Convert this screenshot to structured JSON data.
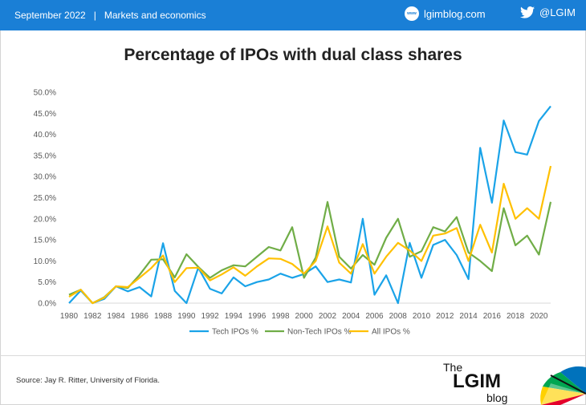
{
  "header": {
    "date": "September 2022",
    "separator": "|",
    "section": "Markets and economics",
    "site_icon_label": "www",
    "site": "lgimblog.com",
    "twitter": "@LGIM"
  },
  "footer": {
    "source": "Source: Jay R. Ritter, University of Florida.",
    "logo_the": "The",
    "logo_main": "LGIM",
    "logo_blog": "blog"
  },
  "chart_data": {
    "type": "line",
    "title": "Percentage of IPOs  with dual class shares",
    "xlabel": "",
    "ylabel": "",
    "ylim": [
      0,
      50
    ],
    "yticks": [
      "0.0%",
      "5.0%",
      "10.0%",
      "15.0%",
      "20.0%",
      "25.0%",
      "30.0%",
      "35.0%",
      "40.0%",
      "45.0%",
      "50.0%"
    ],
    "xticks": [
      "1980",
      "1982",
      "1984",
      "1986",
      "1988",
      "1990",
      "1992",
      "1994",
      "1996",
      "1998",
      "2000",
      "2002",
      "2004",
      "2006",
      "2008",
      "2010",
      "2012",
      "2014",
      "2016",
      "2018",
      "2020"
    ],
    "x": [
      1980,
      1981,
      1982,
      1983,
      1984,
      1985,
      1986,
      1987,
      1988,
      1989,
      1990,
      1991,
      1992,
      1993,
      1994,
      1995,
      1996,
      1997,
      1998,
      1999,
      2000,
      2001,
      2002,
      2003,
      2004,
      2005,
      2006,
      2007,
      2008,
      2009,
      2010,
      2011,
      2012,
      2013,
      2014,
      2015,
      2016,
      2017,
      2018,
      2019,
      2020,
      2021
    ],
    "grid": false,
    "legend": "bottom",
    "series": [
      {
        "name": "Tech IPOs %",
        "color": "#1aa3e8",
        "values": [
          0.0,
          3.0,
          0.0,
          1.0,
          4.0,
          2.8,
          3.8,
          1.6,
          14.2,
          2.9,
          0.0,
          8.4,
          3.4,
          2.3,
          6.1,
          4.0,
          5.0,
          5.6,
          7.0,
          6.0,
          6.9,
          8.7,
          5.0,
          5.6,
          4.9,
          20.0,
          2.0,
          6.6,
          0.0,
          14.3,
          6.0,
          13.8,
          15.0,
          11.4,
          5.7,
          36.8,
          23.8,
          43.3,
          35.8,
          35.2,
          43.2,
          46.7
        ]
      },
      {
        "name": "Non-Tech IPOs %",
        "color": "#70ad47",
        "values": [
          2.0,
          3.2,
          0.0,
          1.4,
          4.0,
          3.6,
          6.7,
          10.3,
          10.4,
          6.1,
          11.6,
          8.6,
          6.0,
          7.8,
          9.0,
          8.7,
          11.0,
          13.3,
          12.5,
          18.0,
          6.0,
          10.8,
          24.0,
          11.0,
          8.2,
          11.4,
          9.1,
          15.5,
          20.0,
          11.0,
          12.3,
          18.0,
          17.0,
          20.4,
          12.0,
          10.0,
          7.6,
          22.5,
          13.7,
          16.0,
          11.5,
          24.0
        ]
      },
      {
        "name": "All IPOs %",
        "color": "#ffc000",
        "values": [
          1.5,
          3.2,
          0.0,
          1.3,
          4.0,
          3.8,
          6.0,
          8.3,
          11.3,
          5.0,
          8.3,
          8.4,
          5.4,
          6.8,
          8.5,
          6.5,
          8.7,
          10.6,
          10.5,
          9.3,
          7.0,
          10.0,
          18.2,
          9.6,
          7.0,
          14.0,
          7.0,
          11.0,
          14.3,
          12.5,
          10.0,
          16.0,
          16.5,
          17.8,
          10.0,
          18.6,
          12.0,
          28.3,
          20.0,
          22.5,
          20.0,
          32.5
        ]
      }
    ]
  }
}
